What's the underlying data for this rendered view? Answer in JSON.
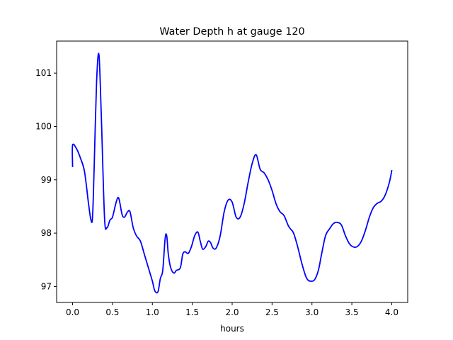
{
  "chart_data": {
    "type": "line",
    "title": "Water Depth h at gauge 120",
    "xlabel": "hours",
    "ylabel": "",
    "xlim": [
      -0.2,
      4.2
    ],
    "ylim": [
      96.7,
      101.6
    ],
    "xticks": [
      0.0,
      0.5,
      1.0,
      1.5,
      2.0,
      2.5,
      3.0,
      3.5,
      4.0
    ],
    "xtick_labels": [
      "0.0",
      "0.5",
      "1.0",
      "1.5",
      "2.0",
      "2.5",
      "3.0",
      "3.5",
      "4.0"
    ],
    "yticks": [
      97,
      98,
      99,
      100,
      101
    ],
    "ytick_labels": [
      "97",
      "98",
      "99",
      "100",
      "101"
    ],
    "grid": false,
    "series": [
      {
        "color": "#0000ff",
        "x": [
          0.0,
          0.0,
          0.05,
          0.1,
          0.15,
          0.2,
          0.23,
          0.25,
          0.27,
          0.3,
          0.33,
          0.36,
          0.4,
          0.43,
          0.47,
          0.5,
          0.55,
          0.58,
          0.62,
          0.65,
          0.69,
          0.72,
          0.76,
          0.8,
          0.85,
          0.9,
          0.95,
          1.0,
          1.03,
          1.07,
          1.1,
          1.13,
          1.16,
          1.18,
          1.2,
          1.23,
          1.27,
          1.3,
          1.35,
          1.38,
          1.41,
          1.45,
          1.49,
          1.53,
          1.57,
          1.6,
          1.63,
          1.67,
          1.7,
          1.73,
          1.76,
          1.8,
          1.85,
          1.9,
          1.95,
          2.0,
          2.05,
          2.1,
          2.15,
          2.2,
          2.25,
          2.3,
          2.35,
          2.4,
          2.45,
          2.5,
          2.55,
          2.6,
          2.65,
          2.7,
          2.73,
          2.77,
          2.82,
          2.87,
          2.92,
          2.95,
          2.98,
          3.03,
          3.08,
          3.12,
          3.17,
          3.22,
          3.27,
          3.32,
          3.37,
          3.42,
          3.47,
          3.52,
          3.57,
          3.62,
          3.67,
          3.72,
          3.77,
          3.82,
          3.87,
          3.92,
          3.97,
          4.0
        ],
        "y": [
          99.25,
          99.65,
          99.58,
          99.4,
          99.15,
          98.55,
          98.25,
          98.3,
          99.2,
          100.8,
          101.35,
          100.2,
          98.3,
          98.1,
          98.25,
          98.3,
          98.6,
          98.65,
          98.35,
          98.3,
          98.4,
          98.4,
          98.1,
          97.95,
          97.85,
          97.6,
          97.35,
          97.1,
          96.92,
          96.9,
          97.15,
          97.3,
          97.9,
          97.95,
          97.6,
          97.35,
          97.25,
          97.3,
          97.35,
          97.6,
          97.65,
          97.62,
          97.75,
          97.95,
          98.02,
          97.85,
          97.7,
          97.75,
          97.85,
          97.82,
          97.72,
          97.72,
          97.95,
          98.4,
          98.62,
          98.58,
          98.3,
          98.3,
          98.55,
          98.95,
          99.3,
          99.47,
          99.2,
          99.13,
          99.0,
          98.8,
          98.55,
          98.4,
          98.33,
          98.15,
          98.08,
          98.0,
          97.75,
          97.45,
          97.2,
          97.12,
          97.1,
          97.12,
          97.3,
          97.6,
          97.95,
          98.08,
          98.18,
          98.2,
          98.15,
          97.95,
          97.8,
          97.74,
          97.75,
          97.85,
          98.05,
          98.3,
          98.48,
          98.56,
          98.6,
          98.72,
          98.95,
          99.17
        ]
      }
    ]
  }
}
